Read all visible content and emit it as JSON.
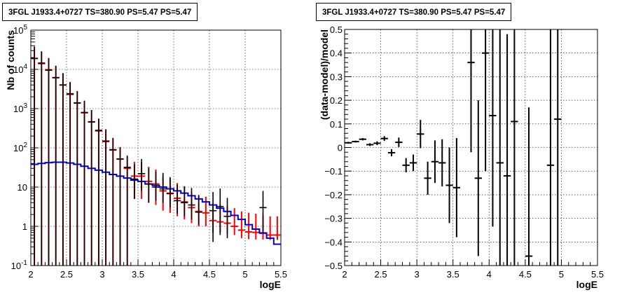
{
  "panels": [
    {
      "title": "3FGL J1933.4+0727 TS=380.90 PS=5.47 PS=5.47"
    },
    {
      "title": "3FGL J1933.4+0727 TS=380.90 PS=5.47 PS=5.47"
    }
  ],
  "chart_data": [
    {
      "type": "line",
      "title": "3FGL J1933.4+0727 TS=380.90 PS=5.47 PS=5.47",
      "xlabel": "logE",
      "ylabel": "Nb of counts",
      "xlim": [
        2,
        5.5
      ],
      "ylim": [
        0.1,
        100000
      ],
      "yscale": "log",
      "grid": true,
      "x_ticks": [
        "2",
        "2.5",
        "3",
        "3.5",
        "4",
        "4.5",
        "5",
        "5.5"
      ],
      "y_ticks": [
        "10^-1",
        "1",
        "10",
        "10^2",
        "10^3",
        "10^4",
        "10^5"
      ],
      "bin_edges": [
        2.0,
        2.1,
        2.2,
        2.3,
        2.4,
        2.5,
        2.6,
        2.7,
        2.8,
        2.9,
        3.0,
        3.1,
        3.2,
        3.3,
        3.4,
        3.5,
        3.6,
        3.7,
        3.8,
        3.9,
        4.0,
        4.1,
        4.2,
        4.3,
        4.4,
        4.5,
        4.6,
        4.7,
        4.8,
        4.9,
        5.0,
        5.1,
        5.2,
        5.3,
        5.4,
        5.5
      ],
      "series": [
        {
          "role": "data",
          "color": "#000000",
          "x": [
            2.05,
            2.15,
            2.25,
            2.35,
            2.45,
            2.55,
            2.65,
            2.75,
            2.85,
            2.95,
            3.05,
            3.15,
            3.25,
            3.35,
            3.45,
            3.55,
            3.65,
            3.75,
            3.85,
            3.95,
            4.05,
            4.15,
            4.25,
            4.35,
            4.55,
            4.65,
            4.75,
            5.25
          ],
          "y": [
            19000,
            14500,
            9500,
            6200,
            4000,
            2400,
            1400,
            800,
            460,
            280,
            145,
            90,
            52,
            32,
            16,
            22,
            12,
            10,
            9,
            7,
            4.5,
            4,
            3.5,
            2.3,
            2.5,
            3.2,
            1.8,
            3
          ],
          "err_low": [
            19000,
            14500,
            9500,
            6200,
            4000,
            2400,
            1400,
            800,
            460,
            280,
            145,
            90,
            52,
            32,
            11,
            14,
            8,
            5.5,
            5,
            4,
            2.4,
            2.2,
            2,
            1.2,
            2.1,
            2.6,
            1.3,
            2.3
          ],
          "err_high": [
            19000,
            14500,
            9500,
            6200,
            4000,
            2400,
            1400,
            800,
            460,
            280,
            145,
            90,
            52,
            32,
            22,
            30,
            18,
            15,
            14,
            11,
            7,
            6.5,
            6,
            4,
            5,
            6,
            3.5,
            5
          ]
        },
        {
          "role": "model",
          "color": "#ff0000",
          "y": [
            19000,
            14000,
            9800,
            6100,
            4000,
            2300,
            1380,
            780,
            460,
            270,
            150,
            88,
            52,
            30,
            19,
            19,
            14,
            12,
            8,
            6.8,
            5.2,
            4.2,
            3,
            2.4,
            2.2,
            1.4,
            1.3,
            1.2,
            1,
            0.8,
            0.72,
            0.7,
            0.66,
            0.6,
            0.6
          ],
          "err_low": [
            19000,
            14000,
            9800,
            6100,
            4000,
            2300,
            1380,
            780,
            460,
            270,
            150,
            88,
            52,
            30,
            14,
            14,
            10,
            8.5,
            5.5,
            4.6,
            3.4,
            2.7,
            1.8,
            1.4,
            1.2,
            0.7,
            0.6,
            0.55,
            0.4,
            0.3,
            0.25,
            0.24,
            0.2,
            0.15,
            0.15
          ],
          "err_high": [
            19000,
            14000,
            9800,
            6100,
            4000,
            2300,
            1380,
            780,
            460,
            270,
            150,
            88,
            52,
            30,
            25,
            25,
            19,
            16,
            11,
            9.5,
            7.5,
            6,
            4.5,
            3.7,
            3.5,
            2.4,
            2.3,
            2.1,
            1.9,
            1.6,
            1.5,
            1.4,
            1.3,
            1.2,
            1.2
          ]
        },
        {
          "role": "background",
          "color": "#0000cc",
          "y": [
            38,
            40,
            42,
            43,
            43,
            41,
            38,
            34,
            30,
            27,
            24,
            21,
            19,
            17,
            15,
            14,
            12,
            11,
            10,
            9,
            8,
            7,
            6,
            5,
            4.2,
            3.5,
            2.9,
            2.4,
            1.9,
            1.5,
            1.1,
            0.85,
            0.68,
            0.5,
            0.35
          ]
        }
      ]
    },
    {
      "type": "scatter",
      "title": "3FGL J1933.4+0727 TS=380.90 PS=5.47 PS=5.47",
      "xlabel": "logE",
      "ylabel": "(data-model)/model",
      "xlim": [
        2,
        5.5
      ],
      "ylim": [
        -0.5,
        0.5
      ],
      "grid": true,
      "x_ticks": [
        "2",
        "2.5",
        "3",
        "3.5",
        "4",
        "4.5",
        "5",
        "5.5"
      ],
      "y_ticks": [
        "-0.5",
        "-0.4",
        "-0.3",
        "-0.2",
        "-0.1",
        "0",
        "0.1",
        "0.2",
        "0.3",
        "0.4",
        "0.5"
      ],
      "series": [
        {
          "role": "residuals",
          "color": "#000000",
          "x": [
            2.05,
            2.15,
            2.25,
            2.35,
            2.45,
            2.55,
            2.65,
            2.75,
            2.85,
            2.95,
            3.05,
            3.15,
            3.25,
            3.35,
            3.45,
            3.55,
            3.75,
            3.85,
            3.95,
            4.05,
            4.15,
            4.25,
            4.35,
            4.55,
            4.85,
            4.95
          ],
          "y": [
            0.02,
            0.025,
            0.035,
            0.012,
            0.018,
            0.038,
            -0.022,
            0.022,
            -0.075,
            -0.065,
            0.057,
            -0.13,
            -0.06,
            -0.065,
            -0.16,
            -0.17,
            0.36,
            -0.13,
            0.4,
            0.135,
            -0.065,
            -0.12,
            0.11,
            -0.46,
            -0.075,
            0.12
          ],
          "err": [
            0.004,
            0.004,
            0.005,
            0.006,
            0.008,
            0.01,
            0.015,
            0.02,
            0.03,
            0.035,
            0.06,
            0.07,
            0.09,
            0.1,
            0.16,
            0.21,
            0.38,
            0.33,
            0.5,
            0.47,
            0.6,
            0.6,
            0.7,
            0.63,
            0.9,
            1.0
          ]
        }
      ]
    }
  ]
}
